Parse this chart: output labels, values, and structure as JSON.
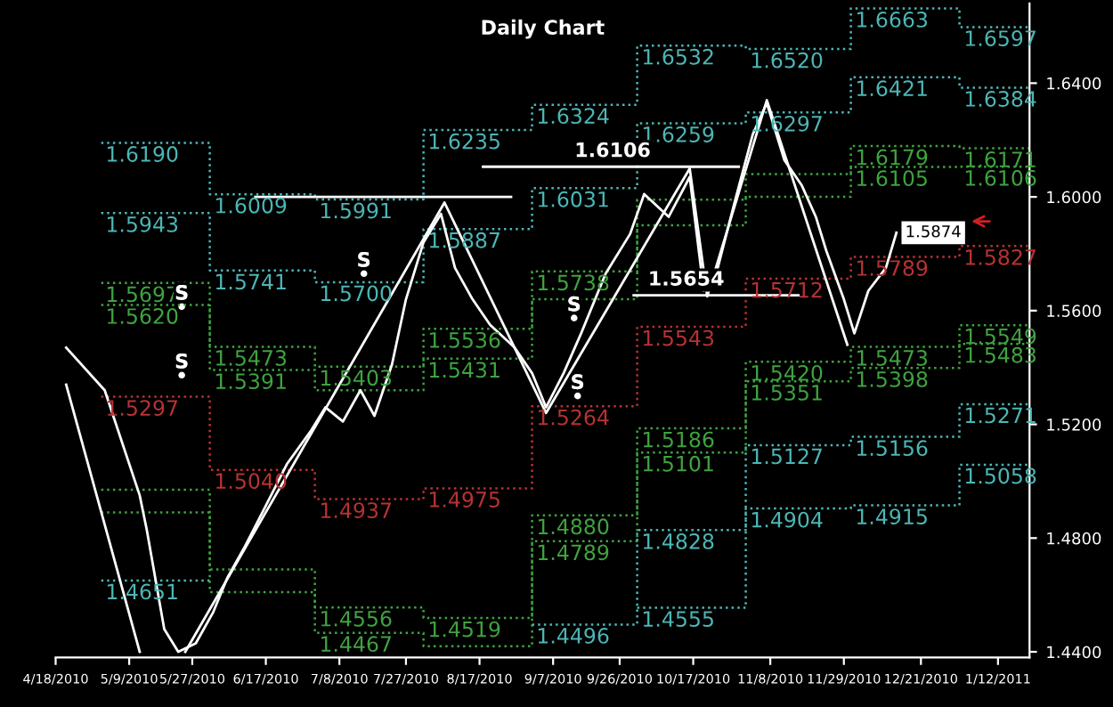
{
  "chart_data": {
    "type": "line",
    "title": "Daily Chart",
    "xlim": [
      "2010-04-18",
      "2011-01-21"
    ],
    "ylim": [
      1.438,
      1.668
    ],
    "xticks": [
      {
        "value": "2010-04-18",
        "label": "4/18/2010"
      },
      {
        "value": "2010-05-09",
        "label": "5/9/2010"
      },
      {
        "value": "2010-05-27",
        "label": "5/27/2010"
      },
      {
        "value": "2010-06-17",
        "label": "6/17/2010"
      },
      {
        "value": "2010-07-08",
        "label": "7/8/2010"
      },
      {
        "value": "2010-07-27",
        "label": "7/27/2010"
      },
      {
        "value": "2010-08-17",
        "label": "8/17/2010"
      },
      {
        "value": "2010-09-07",
        "label": "9/7/2010"
      },
      {
        "value": "2010-09-26",
        "label": "9/26/2010"
      },
      {
        "value": "2010-10-17",
        "label": "10/17/2010"
      },
      {
        "value": "2010-11-08",
        "label": "11/8/2010"
      },
      {
        "value": "2010-11-29",
        "label": "11/29/2010"
      },
      {
        "value": "2010-12-21",
        "label": "12/21/2010"
      },
      {
        "value": "2011-01-12",
        "label": "1/12/2011"
      }
    ],
    "yticks": [
      {
        "value": 1.44,
        "label": "1.4400"
      },
      {
        "value": 1.48,
        "label": "1.4800"
      },
      {
        "value": 1.52,
        "label": "1.5200"
      },
      {
        "value": 1.56,
        "label": "1.5600"
      },
      {
        "value": 1.6,
        "label": "1.6000"
      },
      {
        "value": 1.64,
        "label": "1.6400"
      }
    ],
    "grid": false,
    "legend": false,
    "series": [
      {
        "type": "step",
        "line_style": "dotted",
        "color": "#4db6b6",
        "x": [
          "2010-05-01",
          "2010-06-01",
          "2010-07-01",
          "2010-08-01",
          "2010-09-01",
          "2010-10-01",
          "2010-11-01",
          "2010-12-01",
          "2011-01-01"
        ],
        "values": [
          1.619,
          1.6009,
          1.5991,
          1.6235,
          1.6324,
          1.6532,
          1.652,
          1.6663,
          1.6597
        ],
        "value_labels": [
          "1.6190",
          "1.6009",
          "1.5991",
          "1.6235",
          "1.6324",
          "1.6532",
          "1.6520",
          "1.6663",
          "1.6597"
        ]
      },
      {
        "type": "step",
        "line_style": "dotted",
        "color": "#4db6b6",
        "x": [
          "2010-05-01",
          "2010-06-01",
          "2010-07-01",
          "2010-08-01",
          "2010-09-01",
          "2010-10-01",
          "2010-11-01",
          "2010-12-01",
          "2011-01-01"
        ],
        "values": [
          1.5943,
          1.5741,
          1.57,
          1.5887,
          1.6031,
          1.6259,
          1.6297,
          1.6421,
          1.6384
        ],
        "value_labels": [
          "1.5943",
          "1.5741",
          "1.5700",
          "1.5887",
          "1.6031",
          "1.6259",
          "1.6297",
          "1.6421",
          "1.6384"
        ]
      },
      {
        "type": "step",
        "line_style": "dotted",
        "color": "#3fa33f",
        "x": [
          "2010-05-01",
          "2010-06-01",
          "2010-07-01",
          "2010-08-01",
          "2010-09-01",
          "2010-10-01",
          "2010-11-01",
          "2010-12-01",
          "2011-01-01"
        ],
        "values": [
          1.5697,
          1.5473,
          1.5403,
          1.5536,
          1.5738,
          1.599,
          1.608,
          1.6179,
          1.6171
        ],
        "value_labels": [
          "1.5697",
          "1.5473",
          "1.5403",
          "1.5536",
          "1.5738",
          null,
          null,
          "1.6179",
          "1.6171"
        ]
      },
      {
        "type": "step",
        "line_style": "dotted",
        "color": "#3fa33f",
        "x": [
          "2010-05-01",
          "2010-06-01",
          "2010-07-01",
          "2010-08-01",
          "2010-09-01",
          "2010-10-01",
          "2010-11-01",
          "2010-12-01",
          "2011-01-01"
        ],
        "values": [
          1.562,
          1.5391,
          1.532,
          1.5431,
          1.564,
          1.59,
          1.6,
          1.6105,
          1.6106
        ],
        "value_labels": [
          "1.5620",
          "1.5391",
          null,
          "1.5431",
          null,
          null,
          null,
          "1.6105",
          "1.6106"
        ]
      },
      {
        "type": "step",
        "line_style": "dotted",
        "color": "#b83232",
        "x": [
          "2010-05-01",
          "2010-06-01",
          "2010-07-01",
          "2010-08-01",
          "2010-09-01",
          "2010-10-01",
          "2010-11-01",
          "2010-12-01",
          "2011-01-01"
        ],
        "values": [
          1.5297,
          1.504,
          1.4937,
          1.4975,
          1.5264,
          1.5543,
          1.5712,
          1.5789,
          1.5827
        ],
        "value_labels": [
          "1.5297",
          "1.5040",
          "1.4937",
          "1.4975",
          "1.5264",
          "1.5543",
          "1.5712",
          "1.5789",
          "1.5827"
        ]
      },
      {
        "type": "step",
        "line_style": "dotted",
        "color": "#3fa33f",
        "x": [
          "2010-05-01",
          "2010-06-01",
          "2010-07-01",
          "2010-08-01",
          "2010-09-01",
          "2010-10-01",
          "2010-11-01",
          "2010-12-01",
          "2011-01-01"
        ],
        "values": [
          1.497,
          1.469,
          1.4556,
          1.4519,
          1.488,
          1.5186,
          1.542,
          1.5473,
          1.5549
        ],
        "value_labels": [
          null,
          null,
          "1.4556",
          "1.4519",
          "1.4880",
          "1.5186",
          "1.5420",
          "1.5473",
          "1.5549"
        ]
      },
      {
        "type": "step",
        "line_style": "dotted",
        "color": "#3fa33f",
        "x": [
          "2010-05-01",
          "2010-06-01",
          "2010-07-01",
          "2010-08-01",
          "2010-09-01",
          "2010-10-01",
          "2010-11-01",
          "2010-12-01",
          "2011-01-01"
        ],
        "values": [
          1.489,
          1.461,
          1.4467,
          1.442,
          1.4789,
          1.5101,
          1.5351,
          1.5398,
          1.5483
        ],
        "value_labels": [
          null,
          null,
          "1.4467",
          null,
          "1.4789",
          "1.5101",
          "1.5351",
          "1.5398",
          "1.5483"
        ]
      },
      {
        "type": "step",
        "line_style": "dotted",
        "color": "#4db6b6",
        "x": [
          "2010-05-01",
          "2010-06-01",
          "2010-07-01",
          "2010-08-01",
          "2010-09-01",
          "2010-10-01",
          "2010-11-01",
          "2010-12-01",
          "2011-01-01"
        ],
        "values": [
          1.4651,
          null,
          null,
          null,
          1.4496,
          1.4828,
          1.5127,
          1.5156,
          1.5271
        ],
        "value_labels": [
          "1.4651",
          null,
          null,
          null,
          "1.4496",
          "1.4828",
          "1.5127",
          "1.5156",
          "1.5271"
        ]
      },
      {
        "type": "step",
        "line_style": "dotted",
        "color": "#4db6b6",
        "x": [
          "2010-10-01",
          "2010-11-01",
          "2010-12-01",
          "2011-01-01"
        ],
        "values": [
          1.4555,
          1.4904,
          1.4915,
          1.5058
        ],
        "value_labels": [
          "1.4555",
          "1.4904",
          "1.4915",
          "1.5058"
        ]
      },
      {
        "type": "scatter",
        "color": "#ffffff",
        "x": [
          "2010-05-24",
          "2010-05-24",
          "2010-07-15",
          "2010-09-13",
          "2010-09-14"
        ],
        "values": [
          1.5614,
          1.5373,
          1.573,
          1.5574,
          1.53
        ],
        "value_labels": [
          "S",
          "S",
          "S",
          "S",
          "S"
        ]
      },
      {
        "type": "line",
        "color": "#ffffff",
        "x": [
          "2010-06-14",
          "2010-08-26"
        ],
        "values": [
          1.6,
          1.6
        ]
      },
      {
        "type": "line",
        "color": "#ffffff",
        "x": [
          "2010-08-18",
          "2010-10-30"
        ],
        "values": [
          1.6106,
          1.6106
        ]
      },
      {
        "type": "line",
        "color": "#ffffff",
        "x": [
          "2010-09-30",
          "2010-11-16"
        ],
        "values": [
          1.5654,
          1.5654
        ]
      },
      {
        "type": "line",
        "color": "#ffffff",
        "x": [
          "2010-04-21",
          "2010-05-12",
          "2010-05-18",
          "2010-05-25",
          "2010-08-07",
          "2010-09-05",
          "2010-10-16",
          "2010-10-21",
          "2010-11-07",
          "2010-11-30"
        ],
        "values": [
          1.534,
          1.44,
          null,
          1.44,
          1.598,
          1.524,
          1.61,
          1.565,
          1.634,
          1.548
        ]
      },
      {
        "color": "#ffffff",
        "x": [
          "2010-04-21",
          "2010-05-02",
          "2010-05-12",
          "2010-05-14",
          "2010-05-19",
          "2010-05-23",
          "2010-05-28",
          "2010-06-02",
          "2010-06-06",
          "2010-06-11",
          "2010-06-16",
          "2010-06-23",
          "2010-06-30",
          "2010-07-04",
          "2010-07-09",
          "2010-07-14",
          "2010-07-18",
          "2010-07-23",
          "2010-07-27",
          "2010-08-01",
          "2010-08-06",
          "2010-08-10",
          "2010-08-15",
          "2010-08-20",
          "2010-08-27",
          "2010-09-01",
          "2010-09-05",
          "2010-09-10",
          "2010-09-15",
          "2010-09-22",
          "2010-09-29",
          "2010-10-03",
          "2010-10-10",
          "2010-10-16",
          "2010-10-20",
          "2010-10-24",
          "2010-10-29",
          "2010-11-03",
          "2010-11-07",
          "2010-11-12",
          "2010-11-17",
          "2010-11-21",
          "2010-11-24",
          "2010-11-29",
          "2010-12-02",
          "2010-12-06",
          "2010-12-11",
          "2010-12-14"
        ],
        "values": [
          1.547,
          1.532,
          1.495,
          1.483,
          1.448,
          1.44,
          1.443,
          1.454,
          1.466,
          1.477,
          1.489,
          1.506,
          1.518,
          1.526,
          1.521,
          1.532,
          1.523,
          1.541,
          1.564,
          1.584,
          1.594,
          1.575,
          1.564,
          1.555,
          1.547,
          1.538,
          1.526,
          1.538,
          1.552,
          1.573,
          1.587,
          1.601,
          1.593,
          1.607,
          1.567,
          1.575,
          1.599,
          1.622,
          1.633,
          1.613,
          1.604,
          1.593,
          1.581,
          1.564,
          1.552,
          1.567,
          1.575,
          1.5874
        ],
        "value_labels": [
          null,
          null,
          null,
          null,
          null,
          null,
          null,
          null,
          null,
          null,
          null,
          null,
          null,
          null,
          null,
          null,
          null,
          null,
          null,
          null,
          null,
          null,
          null,
          null,
          null,
          null,
          null,
          null,
          null,
          null,
          null,
          null,
          null,
          null,
          null,
          null,
          null,
          null,
          null,
          null,
          null,
          null,
          null,
          null,
          null,
          null,
          null,
          "1.5874"
        ]
      }
    ],
    "annotations": [
      {
        "text": "1.6106",
        "x": "2010-09-24",
        "y": 1.6106
      },
      {
        "text": "1.5654",
        "x": "2010-10-15",
        "y": 1.5654
      }
    ]
  }
}
